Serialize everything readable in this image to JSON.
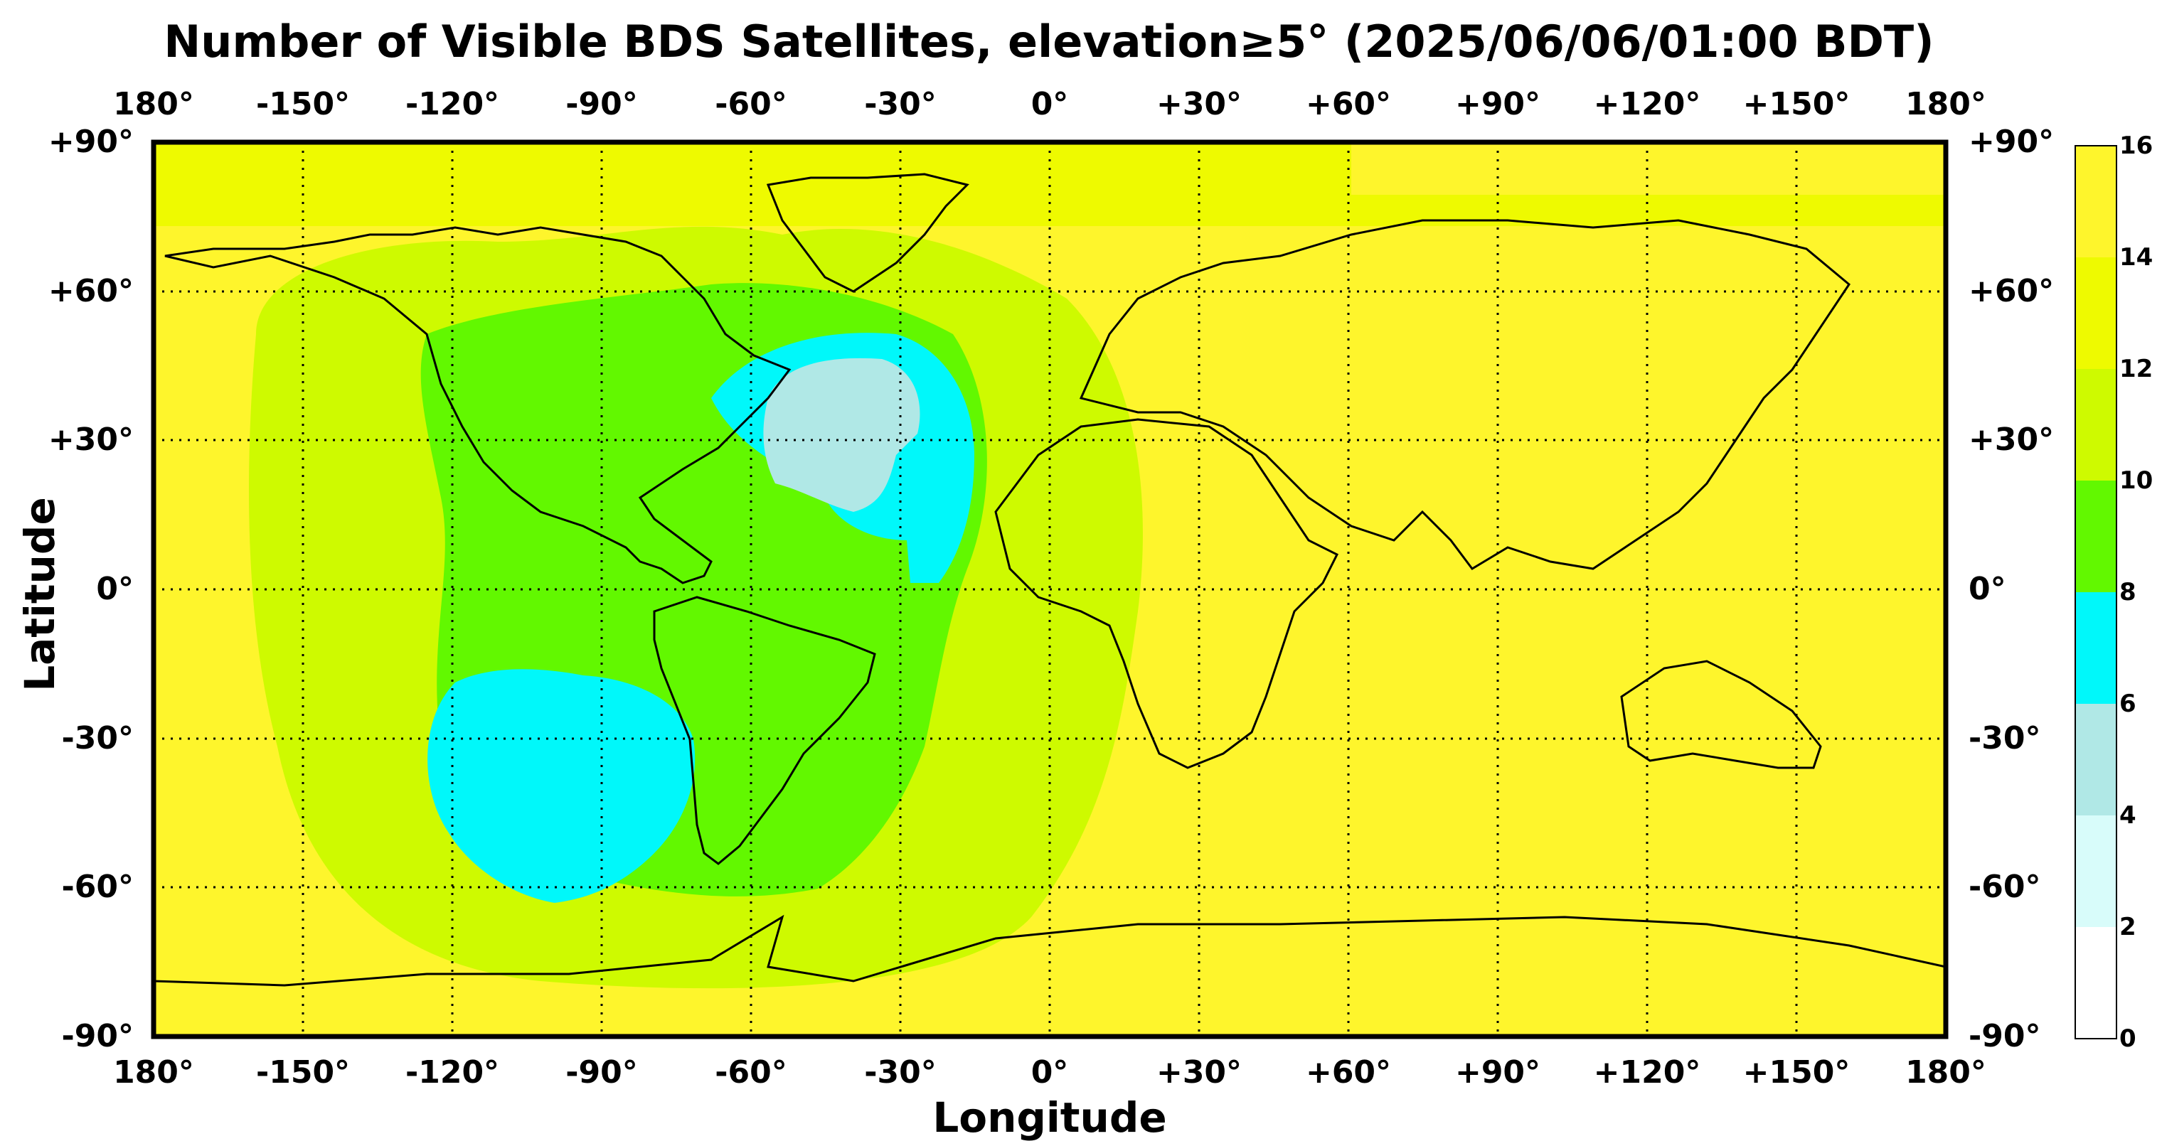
{
  "title": "Number of Visible BDS Satellites, elevation≥5° (2025/06/06/01:00 BDT)",
  "xlabel": "Longitude",
  "ylabel": "Latitude",
  "lon_ticks": [
    "180°",
    "-150°",
    "-120°",
    "-90°",
    "-60°",
    "-30°",
    "0°",
    "+30°",
    "+60°",
    "+90°",
    "+120°",
    "+150°",
    "180°"
  ],
  "lat_ticks": [
    "+90°",
    "+60°",
    "+30°",
    "0°",
    "-30°",
    "-60°",
    "-90°"
  ],
  "colorbar": {
    "levels": [
      0,
      2,
      4,
      6,
      8,
      10,
      12,
      14,
      16
    ],
    "tick_labels": [
      "0",
      "2",
      "4",
      "6",
      "8",
      "10",
      "12",
      "14",
      "16"
    ],
    "colors": [
      "#ffffff",
      "#d8fcfa",
      "#b0e8e6",
      "#00f8fa",
      "#62f800",
      "#cefa00",
      "#eefa00",
      "#fef52c"
    ]
  },
  "chart_data": {
    "type": "heatmap",
    "title": "Number of Visible BDS Satellites, elevation≥5° (2025/06/06/01:00 BDT)",
    "xlabel": "Longitude",
    "ylabel": "Latitude",
    "xlim": [
      -180,
      180
    ],
    "ylim": [
      -90,
      90
    ],
    "grid": true,
    "value_range": [
      0,
      16
    ],
    "regions": [
      {
        "name": "",
        "value_range": [
          14,
          16
        ],
        "coverage": "Eastern hemisphere, Africa, Asia, Australia, Antarctica, polar caps"
      },
      {
        "name": "",
        "value_range": [
          12,
          14
        ],
        "coverage": "Arctic band and outer ring around Atlantic/Pacific low"
      },
      {
        "name": "",
        "value_range": [
          10,
          12
        ],
        "coverage": "Pacific and South Atlantic transition zone"
      },
      {
        "name": "",
        "value_range": [
          8,
          10
        ],
        "coverage": "Americas and Atlantic"
      },
      {
        "name": "",
        "value_range": [
          6,
          8
        ],
        "coverage": "North Atlantic and South-East Pacific"
      },
      {
        "name": "",
        "value_range": [
          4,
          6
        ],
        "coverage": "Central North Atlantic"
      }
    ]
  }
}
